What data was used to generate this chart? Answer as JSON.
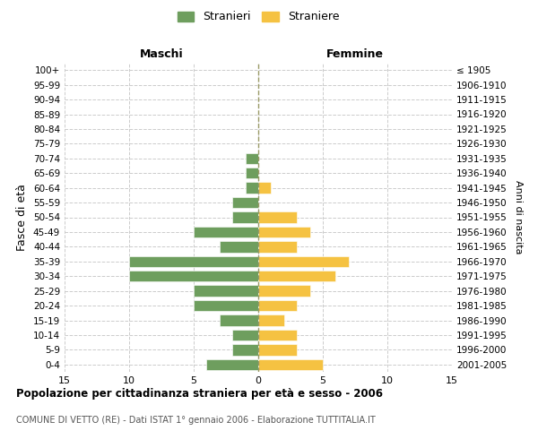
{
  "age_groups": [
    "0-4",
    "5-9",
    "10-14",
    "15-19",
    "20-24",
    "25-29",
    "30-34",
    "35-39",
    "40-44",
    "45-49",
    "50-54",
    "55-59",
    "60-64",
    "65-69",
    "70-74",
    "75-79",
    "80-84",
    "85-89",
    "90-94",
    "95-99",
    "100+"
  ],
  "birth_years": [
    "2001-2005",
    "1996-2000",
    "1991-1995",
    "1986-1990",
    "1981-1985",
    "1976-1980",
    "1971-1975",
    "1966-1970",
    "1961-1965",
    "1956-1960",
    "1951-1955",
    "1946-1950",
    "1941-1945",
    "1936-1940",
    "1931-1935",
    "1926-1930",
    "1921-1925",
    "1916-1920",
    "1911-1915",
    "1906-1910",
    "≤ 1905"
  ],
  "maschi": [
    4,
    2,
    2,
    3,
    5,
    5,
    10,
    10,
    3,
    5,
    2,
    2,
    1,
    1,
    1,
    0,
    0,
    0,
    0,
    0,
    0
  ],
  "femmine": [
    5,
    3,
    3,
    2,
    3,
    4,
    6,
    7,
    3,
    4,
    3,
    0,
    1,
    0,
    0,
    0,
    0,
    0,
    0,
    0,
    0
  ],
  "color_maschi": "#6e9e5e",
  "color_femmine": "#f5c242",
  "title": "Popolazione per cittadinanza straniera per età e sesso - 2006",
  "subtitle": "COMUNE DI VETTO (RE) - Dati ISTAT 1° gennaio 2006 - Elaborazione TUTTITALIA.IT",
  "ylabel_left": "Fasce di età",
  "ylabel_right": "Anni di nascita",
  "xlabel_left": "Maschi",
  "xlabel_right": "Femmine",
  "legend_maschi": "Stranieri",
  "legend_femmine": "Straniere",
  "xlim": 15,
  "background_color": "#ffffff",
  "grid_color": "#cccccc",
  "center_line_color": "#999966"
}
